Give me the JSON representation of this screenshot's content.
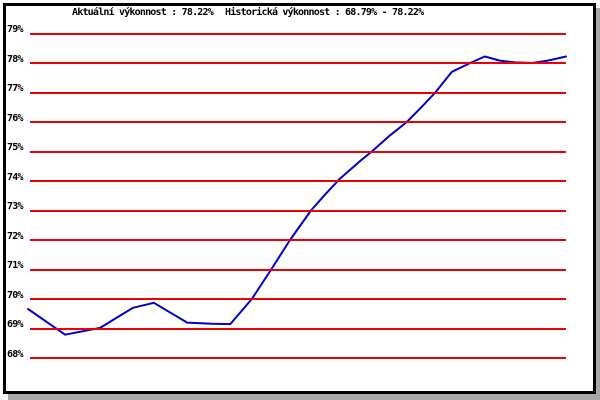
{
  "window": {
    "background": "#ffffff",
    "border_color": "#000000",
    "shadow_color": "#a8a8a8"
  },
  "title": {
    "current": "Aktuální výkonnost : 78.22%",
    "historical": "Historická výkonnost : 68.79% - 78.22%"
  },
  "chart_data": {
    "type": "line",
    "title": "Aktuální výkonnost : 78.22%  Historická výkonnost : 68.79% - 78.22%",
    "xlabel": "",
    "ylabel": "",
    "ylim": [
      67.5,
      79.5
    ],
    "y_ticks": [
      "79%",
      "78%",
      "77%",
      "76%",
      "75%",
      "74%",
      "73%",
      "72%",
      "71%",
      "70%",
      "69%",
      "68%"
    ],
    "grid": "horizontal red lines at every 1%",
    "grid_color": "#ee0000",
    "line_color": "#0000cc",
    "legend": "none",
    "current_value_pct": 78.22,
    "historical_min_pct": 68.79,
    "historical_max_pct": 78.22,
    "series": [
      {
        "name": "výkonnost",
        "points": [
          {
            "t": 0.0,
            "v": 69.66
          },
          {
            "t": 0.069,
            "v": 68.79
          },
          {
            "t": 0.134,
            "v": 69.02
          },
          {
            "t": 0.195,
            "v": 69.7
          },
          {
            "t": 0.234,
            "v": 69.87
          },
          {
            "t": 0.296,
            "v": 69.2
          },
          {
            "t": 0.342,
            "v": 69.16
          },
          {
            "t": 0.376,
            "v": 69.15
          },
          {
            "t": 0.416,
            "v": 70.0
          },
          {
            "t": 0.452,
            "v": 71.0
          },
          {
            "t": 0.487,
            "v": 72.0
          },
          {
            "t": 0.526,
            "v": 73.0
          },
          {
            "t": 0.55,
            "v": 73.5
          },
          {
            "t": 0.58,
            "v": 74.08
          },
          {
            "t": 0.617,
            "v": 74.67
          },
          {
            "t": 0.639,
            "v": 75.0
          },
          {
            "t": 0.673,
            "v": 75.55
          },
          {
            "t": 0.704,
            "v": 76.0
          },
          {
            "t": 0.731,
            "v": 76.5
          },
          {
            "t": 0.757,
            "v": 77.0
          },
          {
            "t": 0.788,
            "v": 77.7
          },
          {
            "t": 0.822,
            "v": 78.0
          },
          {
            "t": 0.849,
            "v": 78.22
          },
          {
            "t": 0.877,
            "v": 78.08
          },
          {
            "t": 0.905,
            "v": 78.02
          },
          {
            "t": 0.937,
            "v": 78.0
          },
          {
            "t": 0.966,
            "v": 78.08
          },
          {
            "t": 1.0,
            "v": 78.22
          }
        ]
      }
    ]
  }
}
